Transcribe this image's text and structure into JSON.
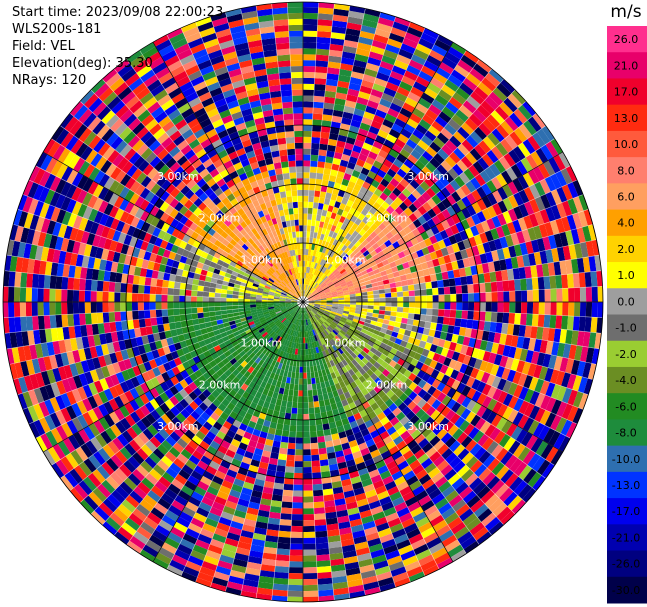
{
  "header": {
    "start_time": "Start time: 2023/09/08 22:00:23",
    "instrument": "WLS200s-181",
    "field": "Field: VEL",
    "elevation": "Elevation(deg): 35.30",
    "nrays": "NRays: 120"
  },
  "colorbar": {
    "unit": "m/s",
    "tick_labels": [
      "26.0",
      "21.0",
      "17.0",
      "13.0",
      "10.0",
      "8.0",
      "6.0",
      "4.0",
      "2.0",
      "1.0",
      "0.0",
      "-1.0",
      "-2.0",
      "-4.0",
      "-6.0",
      "-8.0",
      "-10.0",
      "-13.0",
      "-17.0",
      "-21.0",
      "-26.0",
      "-30.0"
    ],
    "colors": [
      "#ff2f8e",
      "#e8006a",
      "#f0002c",
      "#ff2b10",
      "#ff5a3c",
      "#ff7f6e",
      "#ff9f60",
      "#ffa000",
      "#ffd200",
      "#ffff00",
      "#9e9e9e",
      "#6e6e6e",
      "#9acd32",
      "#6b8e23",
      "#228b22",
      "#1e8c3c",
      "#2e6fb0",
      "#0033ff",
      "#0000ee",
      "#0000b0",
      "#000080",
      "#00004a"
    ]
  },
  "chart_data": {
    "type": "heatmap",
    "projection": "polar (PPI)",
    "field": "VEL",
    "unit": "m/s",
    "nrays": 120,
    "elevation_deg": 35.3,
    "range_rings_km": [
      1.0,
      2.0,
      3.0
    ],
    "ring_labels": [
      "1.00km",
      "2.00km",
      "3.00km"
    ],
    "color_scale_min": -30.0,
    "color_scale_max": 26.0,
    "sectors": [
      {
        "azimuth_deg": [
          300,
          345
        ],
        "inner_range_mean_ms": 6.0
      },
      {
        "azimuth_deg": [
          345,
          45
        ],
        "inner_range_mean_ms": 2.0
      },
      {
        "azimuth_deg": [
          45,
          80
        ],
        "inner_range_mean_ms": 8.0
      },
      {
        "azimuth_deg": [
          80,
          110
        ],
        "inner_range_mean_ms": 1.0
      },
      {
        "azimuth_deg": [
          110,
          160
        ],
        "inner_range_mean_ms": -2.0
      },
      {
        "azimuth_deg": [
          160,
          215
        ],
        "inner_range_mean_ms": -6.0
      },
      {
        "azimuth_deg": [
          215,
          270
        ],
        "inner_range_mean_ms": -6.0
      },
      {
        "azimuth_deg": [
          270,
          300
        ],
        "inner_range_mean_ms": 0.0
      }
    ],
    "grid": true
  }
}
